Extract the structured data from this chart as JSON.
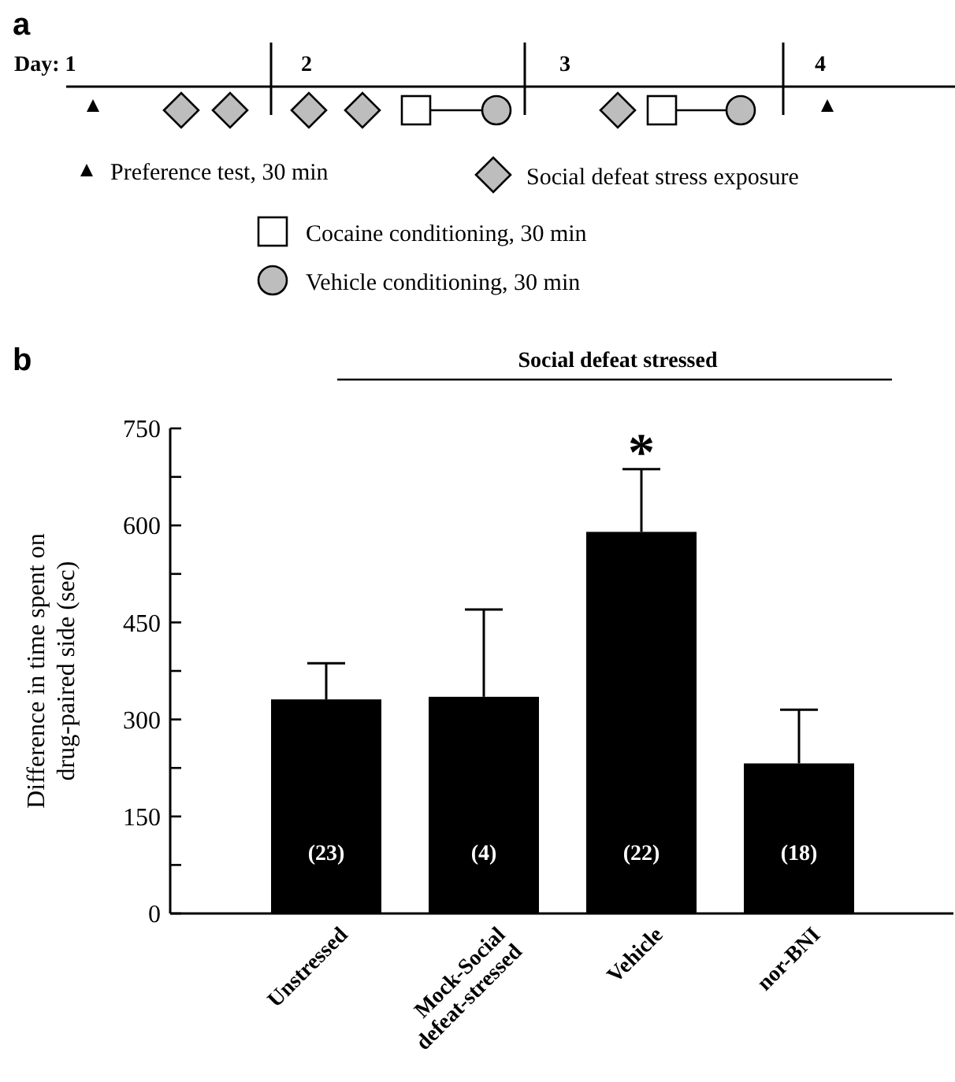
{
  "chart_data": {
    "type": "bar",
    "ylabel": "Difference in time spent on\ndrug-paired side (sec)",
    "categories": [
      "Unstressed",
      "Mock-Social\ndefeat-stressed",
      "Vehicle",
      "nor-BNI"
    ],
    "values": [
      331,
      335,
      590,
      232
    ],
    "errors": [
      [
        331,
        387
      ],
      [
        335,
        470
      ],
      [
        590,
        687
      ],
      [
        232,
        315
      ]
    ],
    "color": "#000000",
    "ylim": [
      0,
      750
    ],
    "yticks": [
      0,
      {
        "value": 75,
        "label": null
      },
      150,
      {
        "value": 225,
        "label": null
      },
      300,
      {
        "value": 375,
        "label": null
      },
      450,
      {
        "value": 525,
        "label": null
      },
      600,
      {
        "value": 675,
        "label": null
      },
      750
    ],
    "annotations": [
      "a",
      "Day: 1",
      "2",
      "3",
      "4",
      "Preference test, 30 min",
      "Social defeat stress exposure",
      "Cocaine conditioning, 30 min",
      "Vehicle conditioning, 30 min",
      "b",
      "Social defeat stressed",
      "*",
      "(23)",
      "(4)",
      "(22)",
      "(18)"
    ]
  }
}
